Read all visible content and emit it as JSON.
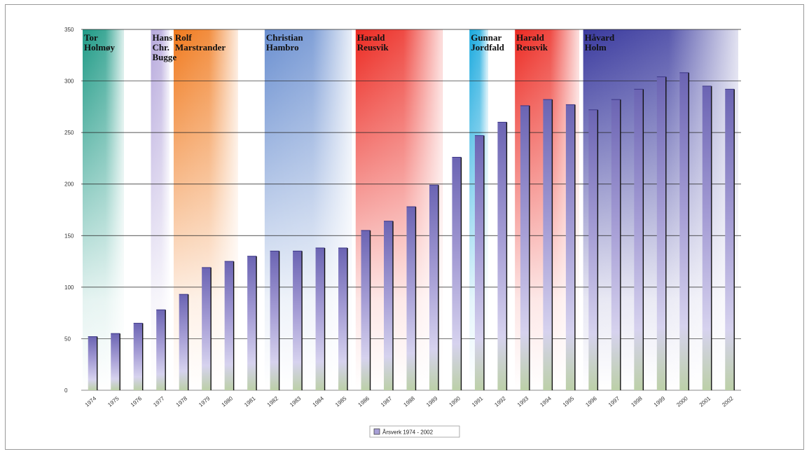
{
  "chart_data": {
    "type": "bar",
    "ylim": [
      0,
      350
    ],
    "yticks": [
      0,
      50,
      100,
      150,
      200,
      250,
      300,
      350
    ],
    "categories": [
      "1974",
      "1975",
      "1976",
      "1977",
      "1978",
      "1979",
      "1980",
      "1981",
      "1982",
      "1983",
      "1984",
      "1985",
      "1986",
      "1987",
      "1988",
      "1989",
      "1990",
      "1991",
      "1992",
      "1993",
      "1994",
      "1995",
      "1996",
      "1997",
      "1998",
      "1999",
      "2000",
      "2001",
      "2002"
    ],
    "series": [
      {
        "name": "Årsverk 1974 - 2002",
        "values": [
          52,
          55,
          65,
          78,
          93,
          119,
          125,
          130,
          135,
          135,
          138,
          138,
          155,
          164,
          178,
          199,
          226,
          247,
          260,
          276,
          282,
          277,
          272,
          282,
          292,
          304,
          308,
          295,
          292
        ]
      }
    ],
    "legend": "bottom-center",
    "annotations": [
      {
        "label": [
          "Tor",
          "Holmøy"
        ],
        "color": "#1f9a86",
        "from": "1974",
        "to": "1975"
      },
      {
        "label": [
          "Hans",
          "Chr.",
          "Bugge"
        ],
        "color": "#b6a8dc",
        "from": "1977",
        "to": "1977"
      },
      {
        "label": [
          "Rolf",
          "Marstrander"
        ],
        "color": "#f07a1e",
        "from": "1978",
        "to": "1980"
      },
      {
        "label": [
          "Christian",
          "Hambro"
        ],
        "color": "#6a8fd0",
        "from": "1982",
        "to": "1985"
      },
      {
        "label": [
          "Harald",
          "Reusvik"
        ],
        "color": "#ec2a22",
        "from": "1986",
        "to": "1989"
      },
      {
        "label": [
          "Gunnar",
          "Jordfald"
        ],
        "color": "#19a9de",
        "from": "1991",
        "to": "1991"
      },
      {
        "label": [
          "Harald",
          "Reusvik"
        ],
        "color": "#ec2a22",
        "from": "1993",
        "to": "1995"
      },
      {
        "label": [
          "Håvard",
          "Holm"
        ],
        "color": "#3a3a9e",
        "from": "1996",
        "to": "2002"
      }
    ]
  }
}
